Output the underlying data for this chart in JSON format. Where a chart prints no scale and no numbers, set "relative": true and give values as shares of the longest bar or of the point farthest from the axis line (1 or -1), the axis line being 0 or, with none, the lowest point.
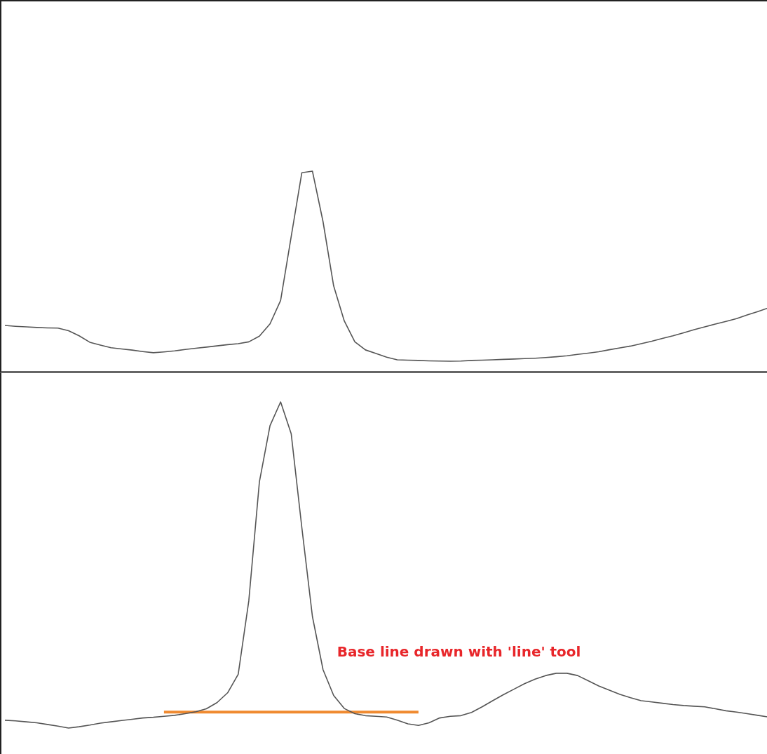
{
  "chart_data": [
    {
      "type": "line",
      "relative": true,
      "legend": false,
      "marker": "none",
      "line_style": "solid",
      "categories": [
        null,
        null,
        null,
        null,
        null,
        null,
        null,
        null,
        null,
        null,
        null,
        null,
        null,
        null,
        null,
        null,
        null,
        null,
        null,
        null,
        null,
        null,
        null,
        null,
        null,
        null,
        null,
        null,
        null,
        null,
        null,
        null,
        null,
        null,
        null,
        null,
        null,
        null,
        null,
        null,
        null,
        null,
        null,
        null,
        null,
        null,
        null,
        null,
        null,
        null,
        null,
        null,
        null,
        null,
        null,
        null,
        null,
        null,
        null,
        null,
        null,
        null,
        null,
        null,
        null,
        null,
        null,
        null,
        null,
        null,
        null,
        null,
        null
      ],
      "series": [
        {
          "color": "#555555",
          "values": [
            0.236,
            0.232,
            0.229,
            0.226,
            0.224,
            0.223,
            0.21,
            0.185,
            0.153,
            0.139,
            0.126,
            0.12,
            0.114,
            0.107,
            0.101,
            0.105,
            0.11,
            0.117,
            0.123,
            0.129,
            0.135,
            0.141,
            0.146,
            0.155,
            0.183,
            0.244,
            0.36,
            0.677,
            0.992,
            1,
            0.75,
            0.432,
            0.259,
            0.155,
            0.115,
            0.097,
            0.079,
            0.066,
            0.064,
            0.063,
            0.061,
            0.06,
            0.059,
            0.06,
            0.063,
            0.064,
            0.066,
            0.068,
            0.07,
            0.072,
            0.074,
            0.077,
            0.081,
            0.086,
            0.093,
            0.099,
            0.106,
            0.116,
            0.125,
            0.134,
            0.146,
            0.158,
            0.172,
            0.185,
            0.2,
            0.215,
            0.229,
            0.243,
            0.256,
            0.27,
            0.288,
            0.305,
            0.323
          ]
        }
      ]
    },
    {
      "type": "line",
      "relative": true,
      "legend": false,
      "marker": "none",
      "line_style": "solid",
      "annotations": [
        "Base line drawn with 'line' tool"
      ],
      "categories": [
        null,
        null,
        null,
        null,
        null,
        null,
        null,
        null,
        null,
        null,
        null,
        null,
        null,
        null,
        null,
        null,
        null,
        null,
        null,
        null,
        null,
        null,
        null,
        null,
        null,
        null,
        null,
        null,
        null,
        null,
        null,
        null,
        null,
        null,
        null,
        null,
        null,
        null,
        null,
        null,
        null,
        null,
        null,
        null,
        null,
        null,
        null,
        null,
        null,
        null,
        null,
        null,
        null,
        null,
        null,
        null,
        null,
        null,
        null,
        null,
        null,
        null,
        null,
        null,
        null,
        null,
        null,
        null,
        null,
        null,
        null,
        null,
        null
      ],
      "series": [
        {
          "color": "#555555",
          "values": [
            0.024,
            0.022,
            0.019,
            0.016,
            0.011,
            0.006,
            0,
            0.004,
            0.009,
            0.015,
            0.019,
            0.023,
            0.027,
            0.031,
            0.033,
            0.036,
            0.039,
            0.044,
            0.05,
            0.059,
            0.078,
            0.108,
            0.165,
            0.39,
            0.755,
            0.927,
            1,
            0.902,
            0.615,
            0.342,
            0.179,
            0.1,
            0.06,
            0.044,
            0.038,
            0.036,
            0.034,
            0.024,
            0.013,
            0.008,
            0.016,
            0.031,
            0.036,
            0.038,
            0.048,
            0.065,
            0.084,
            0.102,
            0.119,
            0.136,
            0.15,
            0.161,
            0.168,
            0.168,
            0.161,
            0.145,
            0.129,
            0.116,
            0.103,
            0.093,
            0.084,
            0.08,
            0.076,
            0.072,
            0.069,
            0.067,
            0.065,
            0.059,
            0.053,
            0.049,
            0.044,
            0.039,
            0.034
          ]
        },
        {
          "color": "#f08a30",
          "values": [
            null,
            null,
            null,
            null,
            null,
            null,
            null,
            null,
            null,
            null,
            null,
            null,
            null,
            null,
            null,
            0.049,
            0.049,
            0.049,
            0.049,
            0.049,
            0.049,
            0.049,
            0.049,
            0.049,
            0.049,
            0.049,
            0.049,
            0.049,
            0.049,
            0.049,
            0.049,
            0.049,
            0.049,
            0.049,
            0.049,
            0.049,
            0.049,
            0.049,
            0.049,
            0.049,
            null,
            null,
            null,
            null,
            null,
            null,
            null,
            null,
            null,
            null,
            null,
            null,
            null,
            null,
            null,
            null,
            null,
            null,
            null,
            null,
            null,
            null,
            null,
            null,
            null,
            null,
            null,
            null,
            null,
            null,
            null,
            null,
            null
          ]
        }
      ]
    }
  ]
}
